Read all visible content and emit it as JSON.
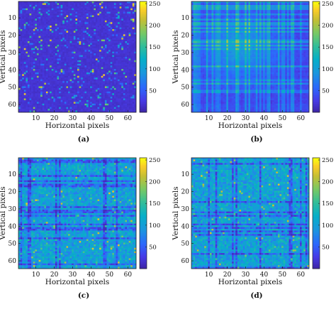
{
  "chart_data": [
    {
      "type": "heatmap",
      "caption": "(a)",
      "xlabel": "Horizontal pixels",
      "ylabel": "Vertical pixels",
      "grid_size": [
        64,
        64
      ],
      "xlim": [
        0.5,
        64.5
      ],
      "ylim": [
        0.5,
        64.5
      ],
      "y_direction": "down",
      "xticks": [
        10,
        20,
        30,
        40,
        50,
        60
      ],
      "yticks": [
        10,
        20,
        30,
        40,
        50,
        60
      ],
      "colorbar": {
        "min": 0,
        "max": 255,
        "ticks": [
          50,
          100,
          150,
          200,
          250
        ],
        "colormap": "parula"
      },
      "pattern": "sparse bright pixels on a dark blue background"
    },
    {
      "type": "heatmap",
      "caption": "(b)",
      "xlabel": "Horizontal pixels",
      "ylabel": "Vertical pixels",
      "grid_size": [
        64,
        64
      ],
      "xlim": [
        0.5,
        64.5
      ],
      "ylim": [
        0.5,
        64.5
      ],
      "y_direction": "down",
      "xticks": [
        10,
        20,
        30,
        40,
        50,
        60
      ],
      "yticks": [
        10,
        20,
        30,
        40,
        50,
        60
      ],
      "colorbar": {
        "min": 0,
        "max": 255,
        "ticks": [
          50,
          100,
          150,
          200,
          250
        ],
        "colormap": "parula"
      },
      "pattern": "grid of brighter rows and columns with a bright center near (26, 26)"
    },
    {
      "type": "heatmap",
      "caption": "(c)",
      "xlabel": "Horizontal pixels",
      "ylabel": "Vertical pixels",
      "grid_size": [
        64,
        64
      ],
      "xlim": [
        0.5,
        64.5
      ],
      "ylim": [
        0.5,
        64.5
      ],
      "y_direction": "down",
      "xticks": [
        10,
        20,
        30,
        40,
        50,
        60
      ],
      "yticks": [
        10,
        20,
        30,
        40,
        50,
        60
      ],
      "colorbar": {
        "min": 0,
        "max": 255,
        "ticks": [
          50,
          100,
          150,
          200,
          250
        ],
        "colormap": "parula"
      },
      "pattern": "dense noisy texture with dark horizontal and vertical stripes"
    },
    {
      "type": "heatmap",
      "caption": "(d)",
      "xlabel": "Horizontal pixels",
      "ylabel": "Vertical pixels",
      "grid_size": [
        64,
        64
      ],
      "xlim": [
        0.5,
        64.5
      ],
      "ylim": [
        0.5,
        64.5
      ],
      "y_direction": "down",
      "xticks": [
        10,
        20,
        30,
        40,
        50,
        60
      ],
      "yticks": [
        10,
        20,
        30,
        40,
        50,
        60
      ],
      "colorbar": {
        "min": 0,
        "max": 255,
        "ticks": [
          50,
          100,
          150,
          200,
          250
        ],
        "colormap": "parula"
      },
      "pattern": "dense noisy texture with dark horizontal and vertical stripes"
    }
  ]
}
